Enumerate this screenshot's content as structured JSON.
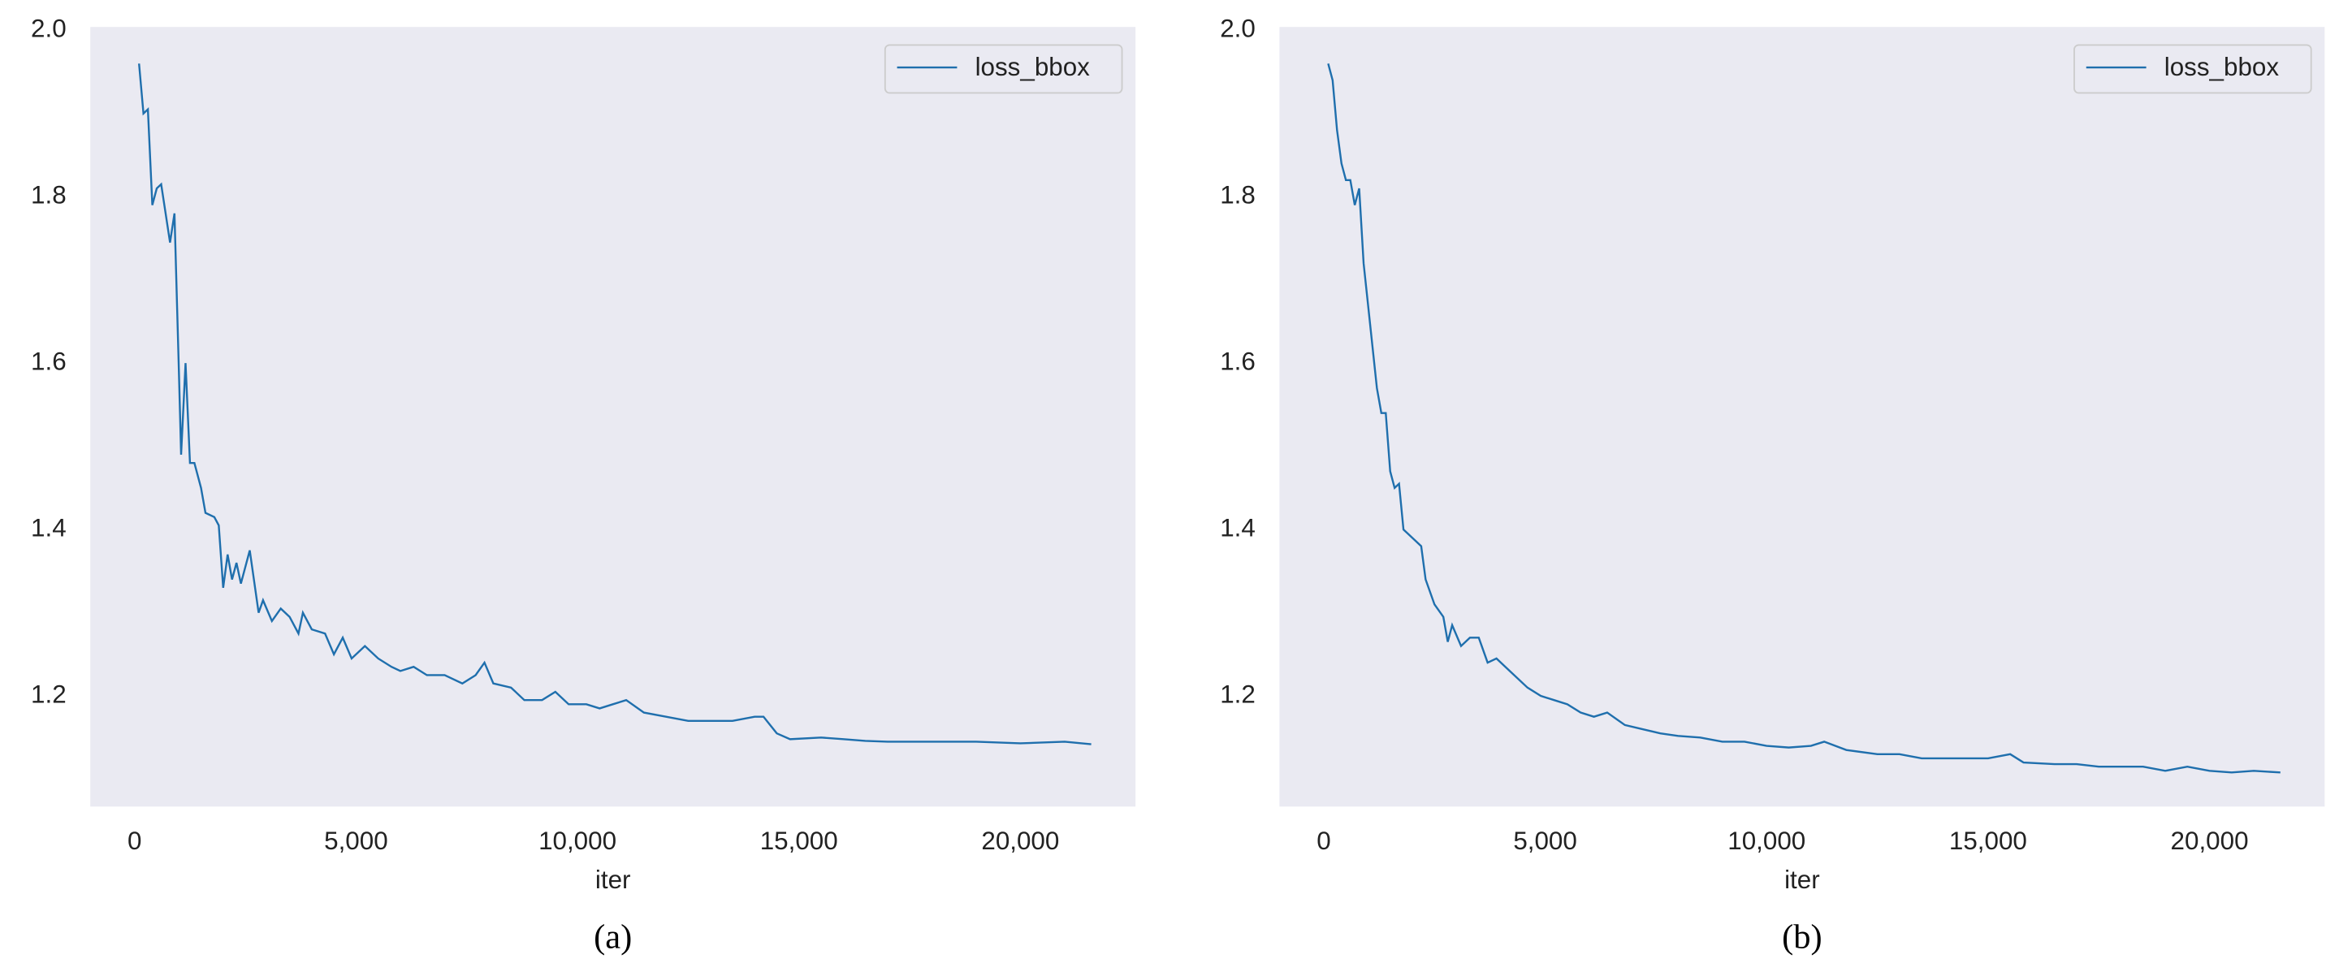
{
  "chart_data": [
    {
      "type": "line",
      "xlabel": "iter",
      "caption": "(a)",
      "legend": "upper right",
      "grid": false,
      "xlim": [
        -1000,
        22600
      ],
      "ylim": [
        1.067,
        2.004
      ],
      "xticks": [
        0,
        {
          "value": 5000,
          "label": "5,000"
        },
        {
          "value": 10000,
          "label": "10,000"
        },
        {
          "value": 15000,
          "label": "15,000"
        },
        {
          "value": 20000,
          "label": "20,000"
        }
      ],
      "yticks": [
        {
          "value": 2,
          "label": "2.0"
        },
        1.8,
        1.6,
        1.4,
        1.2
      ],
      "series": [
        {
          "name": "loss_bbox",
          "color": "#1f6fad",
          "x": [
            100,
            200,
            300,
            400,
            500,
            600,
            700,
            800,
            900,
            1000,
            1050,
            1150,
            1250,
            1350,
            1500,
            1600,
            1800,
            1900,
            2000,
            2100,
            2200,
            2300,
            2400,
            2600,
            2800,
            2900,
            3100,
            3300,
            3500,
            3700,
            3800,
            4000,
            4300,
            4500,
            4700,
            4900,
            5200,
            5500,
            5800,
            6000,
            6300,
            6600,
            7000,
            7400,
            7700,
            7900,
            8100,
            8500,
            8800,
            9200,
            9500,
            9800,
            10200,
            10500,
            10800,
            11100,
            11500,
            12000,
            12500,
            13000,
            13500,
            14000,
            14200,
            14500,
            14800,
            15500,
            16000,
            16500,
            17000,
            18000,
            19000,
            20000,
            21000,
            21600
          ],
          "values": [
            1.96,
            1.9,
            1.905,
            1.79,
            1.81,
            1.815,
            1.78,
            1.745,
            1.78,
            1.59,
            1.49,
            1.6,
            1.48,
            1.48,
            1.45,
            1.42,
            1.415,
            1.405,
            1.33,
            1.37,
            1.34,
            1.36,
            1.335,
            1.375,
            1.3,
            1.315,
            1.29,
            1.305,
            1.295,
            1.275,
            1.3,
            1.28,
            1.275,
            1.25,
            1.27,
            1.245,
            1.26,
            1.245,
            1.235,
            1.23,
            1.235,
            1.225,
            1.225,
            1.215,
            1.225,
            1.24,
            1.215,
            1.21,
            1.195,
            1.195,
            1.205,
            1.19,
            1.19,
            1.185,
            1.19,
            1.195,
            1.18,
            1.175,
            1.17,
            1.17,
            1.17,
            1.175,
            1.175,
            1.155,
            1.148,
            1.15,
            1.148,
            1.146,
            1.145,
            1.145,
            1.145,
            1.143,
            1.145,
            1.142
          ]
        }
      ]
    },
    {
      "type": "line",
      "xlabel": "iter",
      "caption": "(b)",
      "legend": "upper right",
      "grid": false,
      "xlim": [
        -1000,
        22600
      ],
      "ylim": [
        1.067,
        2.004
      ],
      "xticks": [
        0,
        {
          "value": 5000,
          "label": "5,000"
        },
        {
          "value": 10000,
          "label": "10,000"
        },
        {
          "value": 15000,
          "label": "15,000"
        },
        {
          "value": 20000,
          "label": "20,000"
        }
      ],
      "yticks": [
        {
          "value": 2,
          "label": "2.0"
        },
        1.8,
        1.6,
        1.4,
        1.2
      ],
      "series": [
        {
          "name": "loss_bbox",
          "color": "#1f6fad",
          "x": [
            100,
            200,
            300,
            400,
            500,
            600,
            700,
            800,
            900,
            1000,
            1100,
            1200,
            1300,
            1400,
            1500,
            1600,
            1700,
            1800,
            1900,
            2000,
            2200,
            2300,
            2500,
            2700,
            2800,
            2900,
            3100,
            3300,
            3500,
            3700,
            3900,
            4100,
            4300,
            4600,
            4900,
            5200,
            5500,
            5800,
            6100,
            6400,
            6800,
            7200,
            7600,
            8000,
            8500,
            9000,
            9500,
            10000,
            10500,
            11000,
            11300,
            11800,
            12500,
            13000,
            13500,
            14000,
            14500,
            15000,
            15500,
            15800,
            16500,
            17000,
            17500,
            18000,
            18500,
            19000,
            19500,
            20000,
            20500,
            21000,
            21600
          ],
          "values": [
            1.96,
            1.94,
            1.88,
            1.84,
            1.82,
            1.82,
            1.79,
            1.81,
            1.72,
            1.67,
            1.62,
            1.57,
            1.54,
            1.54,
            1.47,
            1.45,
            1.455,
            1.4,
            1.395,
            1.39,
            1.38,
            1.34,
            1.31,
            1.295,
            1.265,
            1.285,
            1.26,
            1.27,
            1.27,
            1.24,
            1.245,
            1.235,
            1.225,
            1.21,
            1.2,
            1.195,
            1.19,
            1.18,
            1.175,
            1.18,
            1.165,
            1.16,
            1.155,
            1.152,
            1.15,
            1.145,
            1.145,
            1.14,
            1.138,
            1.14,
            1.145,
            1.135,
            1.13,
            1.13,
            1.125,
            1.125,
            1.125,
            1.125,
            1.13,
            1.12,
            1.118,
            1.118,
            1.115,
            1.115,
            1.115,
            1.11,
            1.115,
            1.11,
            1.108,
            1.11,
            1.108
          ]
        }
      ]
    }
  ]
}
